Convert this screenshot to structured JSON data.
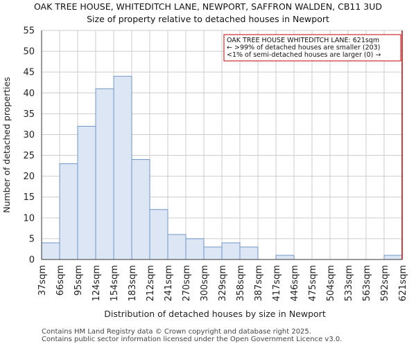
{
  "chart_data": {
    "type": "bar",
    "title": "OAK TREE HOUSE, WHITEDITCH LANE, NEWPORT, SAFFRON WALDEN, CB11 3UD",
    "subtitle": "Size of property relative to detached houses in Newport",
    "xlabel": "Distribution of detached houses by size in Newport",
    "ylabel": "Number of detached properties",
    "bin_edges": [
      37,
      66,
      95,
      124,
      154,
      183,
      212,
      241,
      270,
      300,
      329,
      358,
      387,
      417,
      446,
      475,
      504,
      533,
      563,
      592,
      621
    ],
    "tick_labels": [
      "37sqm",
      "66sqm",
      "95sqm",
      "124sqm",
      "154sqm",
      "183sqm",
      "212sqm",
      "241sqm",
      "270sqm",
      "300sqm",
      "329sqm",
      "358sqm",
      "387sqm",
      "417sqm",
      "446sqm",
      "475sqm",
      "504sqm",
      "533sqm",
      "563sqm",
      "592sqm",
      "621sqm"
    ],
    "values": [
      4,
      23,
      32,
      41,
      44,
      24,
      12,
      6,
      5,
      3,
      4,
      3,
      0,
      1,
      0,
      0,
      0,
      0,
      0,
      1
    ],
    "ylim": [
      0,
      55
    ],
    "yticks": [
      0,
      5,
      10,
      15,
      20,
      25,
      30,
      35,
      40,
      45,
      50,
      55
    ],
    "grid": true,
    "bar_color": "#dce6f4",
    "bar_edge_color": "#6f95c8",
    "marker": {
      "value": 621,
      "color": "#c00000",
      "annotation": [
        "OAK TREE HOUSE WHITEDITCH LANE: 621sqm",
        "← >99% of detached houses are smaller (203)",
        "<1% of semi-detached houses are larger (0) →"
      ]
    }
  },
  "footer": {
    "line1": "Contains HM Land Registry data © Crown copyright and database right 2025.",
    "line2": "Contains public sector information licensed under the Open Government Licence v3.0."
  }
}
